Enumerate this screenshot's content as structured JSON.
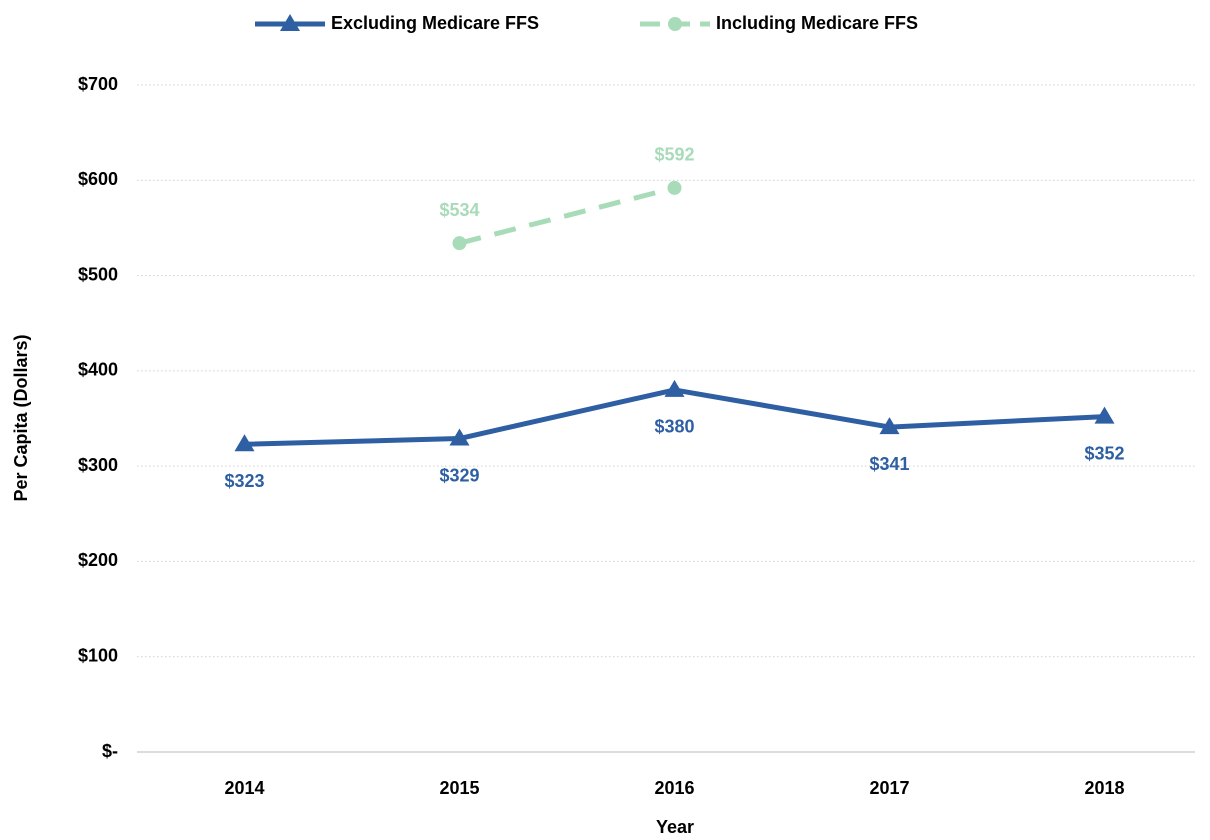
{
  "chart_data": {
    "type": "line",
    "categories": [
      "2014",
      "2015",
      "2016",
      "2017",
      "2018"
    ],
    "series": [
      {
        "name": "Excluding Medicare FFS",
        "color": "#2e5fa3",
        "marker": "triangle",
        "line_style": "solid",
        "values": [
          323,
          329,
          380,
          341,
          352
        ],
        "value_labels": [
          "$323",
          "$329",
          "$380",
          "$341",
          "$352"
        ],
        "label_position": "below"
      },
      {
        "name": "Including Medicare FFS",
        "color": "#a8dbb8",
        "marker": "circle",
        "line_style": "dashed",
        "values": [
          null,
          534,
          592,
          null,
          null
        ],
        "value_labels": [
          null,
          "$534",
          "$592",
          null,
          null
        ],
        "label_position": "above"
      }
    ],
    "ylim": [
      0,
      700
    ],
    "yticks": [
      {
        "value": 0,
        "label": "$-"
      },
      {
        "value": 100,
        "label": "$100"
      },
      {
        "value": 200,
        "label": "$200"
      },
      {
        "value": 300,
        "label": "$300"
      },
      {
        "value": 400,
        "label": "$400"
      },
      {
        "value": 500,
        "label": "$500"
      },
      {
        "value": 600,
        "label": "$600"
      },
      {
        "value": 700,
        "label": "$700"
      }
    ],
    "ylabel": "Per Capita (Dollars)",
    "xlabel": "Year",
    "grid": true,
    "legend": "top"
  }
}
